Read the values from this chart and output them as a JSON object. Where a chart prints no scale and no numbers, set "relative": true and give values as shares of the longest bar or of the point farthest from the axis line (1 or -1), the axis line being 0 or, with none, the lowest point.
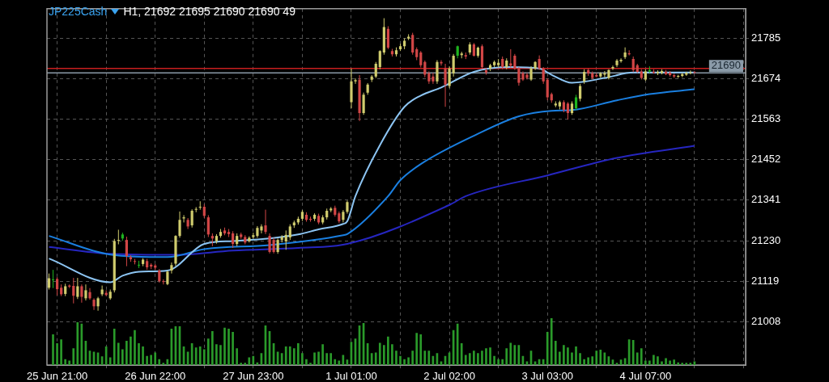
{
  "chart_data": [
    {
      "type": "candlestick",
      "title": "JP225Cash",
      "subtitle": "H1, 21692 21695 21690 21690 49",
      "categories": [
        null,
        null,
        "25 Jun 21:00",
        null,
        null,
        null,
        null,
        null,
        null,
        null,
        null,
        null,
        null,
        null,
        null,
        null,
        null,
        null,
        null,
        null,
        null,
        null,
        null,
        null,
        null,
        null,
        "26 Jun 22:00",
        null,
        null,
        null,
        null,
        null,
        null,
        null,
        null,
        null,
        null,
        null,
        null,
        null,
        null,
        null,
        null,
        null,
        null,
        null,
        null,
        null,
        null,
        null,
        "27 Jun 23:00",
        null,
        null,
        null,
        null,
        null,
        null,
        null,
        null,
        null,
        null,
        null,
        null,
        null,
        null,
        null,
        null,
        null,
        null,
        null,
        null,
        null,
        null,
        null,
        "1 Jul 01:00",
        null,
        null,
        null,
        null,
        null,
        null,
        null,
        null,
        null,
        null,
        null,
        null,
        null,
        null,
        null,
        null,
        null,
        null,
        null,
        null,
        null,
        null,
        null,
        "2 Jul 02:00",
        null,
        null,
        null,
        null,
        null,
        null,
        null,
        null,
        null,
        null,
        null,
        null,
        null,
        null,
        null,
        null,
        null,
        null,
        null,
        null,
        null,
        null,
        null,
        "3 Jul 03:00",
        null,
        null,
        null,
        null,
        null,
        null,
        null,
        null,
        null,
        null,
        null,
        null,
        null,
        null,
        null,
        null,
        null,
        null,
        null,
        null,
        null,
        null,
        null,
        "4 Jul 07:00",
        null,
        null,
        null,
        null,
        null,
        null,
        null,
        null,
        null,
        null,
        null,
        null,
        null,
        null,
        null,
        null,
        null,
        null,
        null,
        null,
        null,
        null,
        null,
        null
      ],
      "ohlc": [
        [
          21101,
          21140,
          21096,
          21127
        ],
        [
          21124,
          21150,
          21100,
          21124
        ],
        [
          21125,
          21130,
          21080,
          21097
        ],
        [
          21101,
          21110,
          21078,
          21083
        ],
        [
          21084,
          21112,
          21078,
          21105
        ],
        [
          21107,
          21110,
          21100,
          21104
        ],
        [
          21106,
          21128,
          21058,
          21079
        ],
        [
          21076,
          21128,
          21070,
          21105
        ],
        [
          21105,
          21110,
          21060,
          21076
        ],
        [
          21072,
          21110,
          21066,
          21094
        ],
        [
          21089,
          21100,
          21068,
          21072
        ],
        [
          21068,
          21072,
          21040,
          21050
        ],
        [
          21050,
          21076,
          21038,
          21072
        ],
        [
          21083,
          21107,
          21078,
          21096
        ],
        [
          21087,
          21094,
          21078,
          21081
        ],
        [
          21072,
          21096,
          21068,
          21090
        ],
        [
          21094,
          21235,
          21088,
          21229
        ],
        [
          21230,
          21260,
          21220,
          21232
        ],
        [
          21236,
          21252,
          21230,
          21247
        ],
        [
          21232,
          21241,
          21160,
          21188
        ],
        [
          21185,
          21190,
          21172,
          21179
        ],
        [
          21174,
          21180,
          21165,
          21172
        ],
        [
          21163,
          21175,
          21155,
          21164
        ],
        [
          21166,
          21182,
          21160,
          21178
        ],
        [
          21174,
          21180,
          21150,
          21157
        ],
        [
          21164,
          21168,
          21152,
          21159
        ],
        [
          21162,
          21166,
          21150,
          21156
        ],
        [
          21148,
          21152,
          21115,
          21119
        ],
        [
          21119,
          21124,
          21110,
          21117
        ],
        [
          21111,
          21148,
          21108,
          21145
        ],
        [
          21148,
          21170,
          21140,
          21163
        ],
        [
          21167,
          21245,
          21160,
          21243
        ],
        [
          21243,
          21310,
          21238,
          21287
        ],
        [
          21291,
          21300,
          21280,
          21294
        ],
        [
          21287,
          21292,
          21262,
          21269
        ],
        [
          21272,
          21316,
          21266,
          21312
        ],
        [
          21315,
          21322,
          21308,
          21317
        ],
        [
          21321,
          21338,
          21315,
          21323
        ],
        [
          21323,
          21330,
          21292,
          21298
        ],
        [
          21294,
          21300,
          21240,
          21247
        ],
        [
          21243,
          21250,
          21215,
          21236
        ],
        [
          21229,
          21248,
          21222,
          21243
        ],
        [
          21243,
          21262,
          21238,
          21254
        ],
        [
          21258,
          21266,
          21245,
          21250
        ],
        [
          21254,
          21262,
          21240,
          21248
        ],
        [
          21250,
          21256,
          21210,
          21221
        ],
        [
          21221,
          21250,
          21215,
          21243
        ],
        [
          21247,
          21252,
          21235,
          21240
        ],
        [
          21240,
          21245,
          21220,
          21225
        ],
        [
          21229,
          21242,
          21225,
          21238
        ],
        [
          21240,
          21252,
          21235,
          21245
        ],
        [
          21243,
          21270,
          21238,
          21265
        ],
        [
          21258,
          21275,
          21250,
          21269
        ],
        [
          21272,
          21315,
          21248,
          21254
        ],
        [
          21243,
          21250,
          21195,
          21199
        ],
        [
          21232,
          21238,
          21195,
          21199
        ],
        [
          21199,
          21236,
          21194,
          21232
        ],
        [
          21232,
          21245,
          21225,
          21240
        ],
        [
          21228,
          21258,
          21205,
          21246
        ],
        [
          21239,
          21275,
          21232,
          21269
        ],
        [
          21272,
          21285,
          21265,
          21280
        ],
        [
          21280,
          21296,
          21274,
          21290
        ],
        [
          21290,
          21314,
          21284,
          21309
        ],
        [
          21301,
          21308,
          21282,
          21287
        ],
        [
          21290,
          21296,
          21282,
          21287
        ],
        [
          21290,
          21305,
          21284,
          21301
        ],
        [
          21298,
          21304,
          21275,
          21280
        ],
        [
          21280,
          21300,
          21275,
          21294
        ],
        [
          21294,
          21318,
          21288,
          21312
        ],
        [
          21313,
          21322,
          21308,
          21318
        ],
        [
          21320,
          21326,
          21296,
          21301
        ],
        [
          21305,
          21310,
          21278,
          21283
        ],
        [
          21287,
          21314,
          21280,
          21309
        ],
        [
          21309,
          21340,
          21304,
          21336
        ],
        [
          21610,
          21702,
          21593,
          21667
        ],
        [
          21667,
          21675,
          21660,
          21670
        ],
        [
          21671,
          21684,
          21558,
          21580
        ],
        [
          21580,
          21636,
          21575,
          21630
        ],
        [
          21636,
          21662,
          21630,
          21658
        ],
        [
          21671,
          21684,
          21665,
          21680
        ],
        [
          21680,
          21720,
          21676,
          21715
        ],
        [
          21706,
          21752,
          21700,
          21750
        ],
        [
          21746,
          21840,
          21740,
          21816
        ],
        [
          21811,
          21818,
          21755,
          21759
        ],
        [
          21750,
          21756,
          21735,
          21741
        ],
        [
          21741,
          21760,
          21735,
          21752
        ],
        [
          21755,
          21770,
          21750,
          21763
        ],
        [
          21763,
          21785,
          21755,
          21778
        ],
        [
          21784,
          21796,
          21780,
          21789
        ],
        [
          21794,
          21800,
          21740,
          21746
        ],
        [
          21755,
          21760,
          21725,
          21733
        ],
        [
          21746,
          21750,
          21705,
          21711
        ],
        [
          21720,
          21724,
          21678,
          21685
        ],
        [
          21689,
          21694,
          21660,
          21667
        ],
        [
          21680,
          21690,
          21660,
          21667
        ],
        [
          21667,
          21725,
          21660,
          21720
        ],
        [
          21720,
          21725,
          21710,
          21716
        ],
        [
          21702,
          21715,
          21597,
          21658
        ],
        [
          21654,
          21708,
          21648,
          21702
        ],
        [
          21689,
          21742,
          21680,
          21737
        ],
        [
          21737,
          21765,
          21730,
          21763
        ],
        [
          21739,
          21748,
          21730,
          21743
        ],
        [
          21739,
          21746,
          21728,
          21735
        ],
        [
          21746,
          21774,
          21740,
          21768
        ],
        [
          21768,
          21772,
          21735,
          21737
        ],
        [
          21737,
          21762,
          21732,
          21759
        ],
        [
          21763,
          21768,
          21700,
          21706
        ],
        [
          21697,
          21702,
          21685,
          21691
        ],
        [
          21702,
          21715,
          21695,
          21711
        ],
        [
          21711,
          21724,
          21706,
          21720
        ],
        [
          21711,
          21728,
          21705,
          21718
        ],
        [
          21728,
          21735,
          21700,
          21706
        ],
        [
          21706,
          21730,
          21700,
          21724
        ],
        [
          21716,
          21755,
          21705,
          21710
        ],
        [
          21737,
          21742,
          21698,
          21702
        ],
        [
          21702,
          21706,
          21655,
          21663
        ],
        [
          21689,
          21694,
          21668,
          21672
        ],
        [
          21685,
          21690,
          21672,
          21676
        ],
        [
          21672,
          21708,
          21668,
          21702
        ],
        [
          21702,
          21722,
          21698,
          21720
        ],
        [
          21728,
          21738,
          21698,
          21702
        ],
        [
          21702,
          21706,
          21660,
          21667
        ],
        [
          21671,
          21676,
          21615,
          21623
        ],
        [
          21632,
          21636,
          21608,
          21615
        ],
        [
          21601,
          21612,
          21596,
          21606
        ],
        [
          21598,
          21614,
          21590,
          21610
        ],
        [
          21610,
          21615,
          21582,
          21588
        ],
        [
          21606,
          21610,
          21562,
          21580
        ],
        [
          21580,
          21612,
          21575,
          21606
        ],
        [
          21593,
          21630,
          21588,
          21623
        ],
        [
          21619,
          21660,
          21612,
          21654
        ],
        [
          21667,
          21700,
          21660,
          21693
        ],
        [
          21698,
          21702,
          21682,
          21689
        ],
        [
          21689,
          21694,
          21672,
          21676
        ],
        [
          21684,
          21690,
          21678,
          21680
        ],
        [
          21680,
          21692,
          21676,
          21689
        ],
        [
          21685,
          21695,
          21678,
          21689
        ],
        [
          21676,
          21700,
          21672,
          21698
        ],
        [
          21702,
          21710,
          21698,
          21706
        ],
        [
          21711,
          21728,
          21706,
          21724
        ],
        [
          21722,
          21730,
          21718,
          21726
        ],
        [
          21733,
          21760,
          21728,
          21746
        ],
        [
          21744,
          21752,
          21738,
          21741
        ],
        [
          21728,
          21735,
          21692,
          21698
        ],
        [
          21711,
          21715,
          21690,
          21693
        ],
        [
          21694,
          21700,
          21672,
          21676
        ],
        [
          21672,
          21700,
          21668,
          21694
        ],
        [
          21694,
          21708,
          21690,
          21698
        ],
        [
          21693,
          21700,
          21688,
          21690
        ],
        [
          21689,
          21697,
          21684,
          21693
        ],
        [
          21690,
          21700,
          21686,
          21695
        ],
        [
          21693,
          21698,
          21684,
          21687
        ],
        [
          21690,
          21695,
          21680,
          21684
        ],
        [
          21684,
          21688,
          21676,
          21680
        ],
        [
          21680,
          21685,
          21676,
          21682
        ],
        [
          21682,
          21690,
          21678,
          21687
        ],
        [
          21685,
          21693,
          21682,
          21690
        ],
        [
          21690,
          21697,
          21686,
          21692
        ],
        [
          21692,
          21695,
          21690,
          21690
        ],
        null,
        null,
        null,
        null,
        null,
        null,
        null,
        null,
        null,
        null,
        null,
        null
      ],
      "colors": [
        "#d0cc6e",
        "#1fb51f",
        "#d24646",
        "#d24646",
        "#d0cc6e",
        "#d24646",
        "#d24646",
        "#d0cc6e",
        "#d24646",
        "#d0cc6e",
        "#d24646",
        "#d24646",
        "#d0cc6e",
        "#d0cc6e",
        "#d24646",
        "#d0cc6e",
        "#d0cc6e",
        "#d0cc6e",
        "#1fb51f",
        "#d24646",
        "#d24646",
        "#d24646",
        "#1fb51f",
        "#d0cc6e",
        "#d24646",
        "#d24646",
        "#d24646",
        "#d24646",
        "#d24646",
        "#d0cc6e",
        "#d0cc6e",
        "#d0cc6e",
        "#d0cc6e",
        "#d0cc6e",
        "#d24646",
        "#d0cc6e",
        "#d0cc6e",
        "#d0cc6e",
        "#d24646",
        "#d24646",
        "#d24646",
        "#d0cc6e",
        "#d0cc6e",
        "#d24646",
        "#d24646",
        "#d24646",
        "#d0cc6e",
        "#d24646",
        "#d24646",
        "#d0cc6e",
        "#d0cc6e",
        "#d0cc6e",
        "#d0cc6e",
        "#d24646",
        "#d24646",
        "#d24646",
        "#d0cc6e",
        "#d0cc6e",
        "#d0cc6e",
        "#d0cc6e",
        "#d0cc6e",
        "#d0cc6e",
        "#d0cc6e",
        "#d24646",
        "#d24646",
        "#d0cc6e",
        "#d24646",
        "#d0cc6e",
        "#d0cc6e",
        "#d0cc6e",
        "#d24646",
        "#d24646",
        "#d0cc6e",
        "#d0cc6e",
        "#d0cc6e",
        "#d0cc6e",
        "#d24646",
        "#d0cc6e",
        "#d0cc6e",
        "#d0cc6e",
        "#d0cc6e",
        "#d0cc6e",
        "#d0cc6e",
        "#d24646",
        "#d24646",
        "#d0cc6e",
        "#d0cc6e",
        "#d0cc6e",
        "#d0cc6e",
        "#d24646",
        "#d24646",
        "#d24646",
        "#d24646",
        "#d24646",
        "#d24646",
        "#d0cc6e",
        "#d24646",
        "#d24646",
        "#d0cc6e",
        "#d0cc6e",
        "#1fb51f",
        "#d0cc6e",
        "#d24646",
        "#d0cc6e",
        "#d24646",
        "#d0cc6e",
        "#d24646",
        "#d24646",
        "#d0cc6e",
        "#d0cc6e",
        "#d0cc6e",
        "#d24646",
        "#d0cc6e",
        "#d24646",
        "#d24646",
        "#d24646",
        "#d24646",
        "#d24646",
        "#d0cc6e",
        "#d0cc6e",
        "#d24646",
        "#d24646",
        "#d24646",
        "#d24646",
        "#d0cc6e",
        "#d0cc6e",
        "#d24646",
        "#d24646",
        "#d0cc6e",
        "#1fb51f",
        "#d0cc6e",
        "#d0cc6e",
        "#d24646",
        "#d24646",
        "#d24646",
        "#d0cc6e",
        "#d0cc6e",
        "#d0cc6e",
        "#d0cc6e",
        "#d0cc6e",
        "#d0cc6e",
        "#d0cc6e",
        "#d24646",
        "#d24646",
        "#d24646",
        "#d24646",
        "#d0cc6e",
        "#1fb51f",
        "#d24646",
        "#d0cc6e",
        "#d0cc6e",
        "#d24646",
        "#d24646",
        "#d24646",
        "#d0cc6e",
        "#d0cc6e",
        "#d0cc6e",
        "#d0cc6e",
        "#d24646",
        null,
        null,
        null,
        null,
        null,
        null,
        null,
        null,
        null,
        null,
        null,
        null
      ],
      "series": [
        {
          "type": "line",
          "color": "#8cc4f2",
          "values": [
            21181,
            null,
            null,
            null,
            null,
            null,
            null,
            null,
            null,
            null,
            null,
            null,
            null,
            null,
            null,
            21116,
            null,
            null,
            21134,
            null,
            null,
            null,
            21145,
            null,
            null,
            null,
            null,
            null,
            null,
            21148,
            null,
            null,
            null,
            null,
            null,
            null,
            null,
            null,
            21221,
            null,
            null,
            null,
            null,
            null,
            null,
            21229,
            null,
            null,
            null,
            null,
            null,
            null,
            null,
            null,
            21236,
            null,
            null,
            null,
            null,
            null,
            null,
            21247,
            null,
            null,
            null,
            null,
            21261,
            null,
            null,
            null,
            null,
            null,
            21276,
            21283,
            null,
            21352,
            null,
            null,
            null,
            null,
            null,
            21492,
            null,
            null,
            null,
            null,
            null,
            21597,
            null,
            null,
            null,
            21628,
            null,
            null,
            null,
            null,
            21650,
            null,
            null,
            null,
            null,
            null,
            null,
            null,
            21693,
            null,
            null,
            null,
            null,
            null,
            null,
            null,
            null,
            21706,
            null,
            null,
            null,
            null,
            null,
            null,
            21702,
            null,
            null,
            21685,
            null,
            null,
            null,
            null,
            21663,
            null,
            null,
            null,
            null,
            null,
            null,
            null,
            21676,
            null,
            null,
            null,
            null,
            null,
            null,
            21691,
            null,
            null,
            null,
            null,
            null,
            null,
            null,
            null,
            21691,
            null,
            null,
            null,
            null,
            null,
            21691,
            null,
            null,
            null,
            null,
            null,
            null,
            null,
            null,
            null,
            null,
            null,
            null
          ]
        },
        {
          "type": "line",
          "color": "#1a7fe0",
          "values": [
            21243,
            null,
            null,
            null,
            null,
            null,
            null,
            null,
            null,
            null,
            null,
            null,
            null,
            null,
            null,
            21192,
            null,
            null,
            null,
            null,
            null,
            null,
            null,
            null,
            null,
            null,
            null,
            null,
            null,
            21185,
            null,
            null,
            null,
            null,
            null,
            null,
            null,
            null,
            21207,
            null,
            null,
            null,
            null,
            null,
            null,
            null,
            null,
            null,
            null,
            null,
            null,
            null,
            null,
            null,
            21218,
            null,
            null,
            null,
            null,
            null,
            null,
            null,
            null,
            null,
            null,
            null,
            null,
            null,
            null,
            null,
            null,
            null,
            21245,
            21248,
            null,
            null,
            null,
            null,
            null,
            null,
            null,
            null,
            null,
            21352,
            null,
            null,
            21396,
            null,
            null,
            null,
            null,
            21440,
            null,
            null,
            null,
            null,
            null,
            null,
            null,
            null,
            null,
            null,
            null,
            null,
            null,
            21523,
            null,
            null,
            null,
            null,
            null,
            null,
            null,
            null,
            null,
            21571,
            null,
            null,
            null,
            null,
            null,
            null,
            null,
            21586,
            null,
            null,
            null,
            null,
            21588,
            null,
            null,
            null,
            null,
            null,
            null,
            null,
            null,
            null,
            null,
            21615,
            null,
            null,
            null,
            null,
            null,
            null,
            null,
            21632,
            null,
            null,
            null,
            null,
            null,
            null,
            null,
            null,
            null,
            null,
            21645,
            null,
            null,
            null,
            null,
            null,
            null,
            null,
            null,
            null,
            null,
            null,
            null
          ]
        },
        {
          "type": "line",
          "color": "#2626c0",
          "values": [
            21213,
            null,
            null,
            null,
            null,
            null,
            null,
            null,
            null,
            null,
            null,
            null,
            null,
            null,
            null,
            21194,
            null,
            null,
            null,
            null,
            null,
            null,
            null,
            null,
            null,
            null,
            null,
            null,
            null,
            null,
            null,
            21191,
            null,
            null,
            null,
            null,
            null,
            null,
            null,
            null,
            null,
            null,
            null,
            null,
            null,
            21203,
            null,
            null,
            null,
            null,
            null,
            null,
            null,
            null,
            null,
            null,
            null,
            null,
            null,
            null,
            null,
            21210,
            null,
            null,
            null,
            null,
            null,
            null,
            null,
            null,
            null,
            null,
            null,
            21221,
            null,
            null,
            null,
            null,
            null,
            null,
            null,
            null,
            null,
            null,
            null,
            null,
            null,
            null,
            null,
            null,
            null,
            null,
            null,
            null,
            null,
            null,
            null,
            null,
            21328,
            null,
            null,
            null,
            21352,
            null,
            null,
            null,
            null,
            null,
            null,
            null,
            null,
            null,
            null,
            null,
            null,
            null,
            null,
            null,
            null,
            null,
            null,
            null,
            21409,
            null,
            null,
            null,
            null,
            null,
            null,
            null,
            null,
            null,
            null,
            null,
            null,
            null,
            null,
            null,
            null,
            21457,
            null,
            null,
            null,
            null,
            null,
            null,
            null,
            null,
            null,
            null,
            null,
            null,
            null,
            null,
            null,
            null,
            null,
            null,
            21490,
            null,
            null,
            null,
            null,
            null,
            null,
            null,
            null,
            null,
            null,
            null,
            null
          ]
        }
      ],
      "ylim": [
        20889,
        21866
      ],
      "yticks": [
        21008,
        21119,
        21230,
        21341,
        21452,
        21563,
        21674,
        21785
      ],
      "ref_lines": [
        {
          "axis": "y",
          "value": 21702,
          "color": "#c81e1e"
        },
        {
          "axis": "y",
          "value": 21690,
          "label": "21690",
          "color": "#8a9aa8"
        }
      ],
      "grid": true
    },
    {
      "type": "bar",
      "relative": true,
      "color": "#2a9a2a",
      "categories": [
        null,
        null,
        null,
        null,
        null,
        null,
        null,
        null,
        null,
        null,
        null,
        null,
        null,
        null,
        null,
        null,
        null,
        null,
        null,
        null,
        null,
        null,
        null,
        null,
        null,
        null,
        null,
        null,
        null,
        null,
        null,
        null,
        null,
        null,
        null,
        null,
        null,
        null,
        null,
        null,
        null,
        null,
        null,
        null,
        null,
        null,
        null,
        null,
        null,
        null,
        null,
        null,
        null,
        null,
        null,
        null,
        null,
        null,
        null,
        null,
        null,
        null,
        null,
        null,
        null,
        null,
        null,
        null,
        null,
        null,
        null,
        null,
        null,
        null,
        null,
        null,
        null,
        null,
        null,
        null,
        null,
        null,
        null,
        null,
        null,
        null,
        null,
        null,
        null,
        null,
        null,
        null,
        null,
        null,
        null,
        null,
        null,
        null,
        null,
        null,
        null,
        null,
        null,
        null,
        null,
        null,
        null,
        null,
        null,
        null,
        null,
        null,
        null,
        null,
        null,
        null,
        null,
        null,
        null,
        null,
        null,
        null,
        null,
        null,
        null,
        null,
        null,
        null,
        null,
        null,
        null,
        null,
        null,
        null,
        null,
        null,
        null,
        null,
        null,
        null,
        null,
        null,
        null,
        null,
        null,
        null,
        null,
        null,
        null,
        null,
        null,
        null,
        null,
        null,
        null,
        null,
        null,
        null
      ],
      "values": [
        0.65,
        0.46,
        0.54,
        0.12,
        0.09,
        0.35,
        0.91,
        0.88,
        0.51,
        0.3,
        0.28,
        0.26,
        0.18,
        0.39,
        0.16,
        0.77,
        0.47,
        0.33,
        0.51,
        0.6,
        0.74,
        0.46,
        0.39,
        0.19,
        0.21,
        0.26,
        0.12,
        0.04,
        0.12,
        0.77,
        0.82,
        0.82,
        0.39,
        0.28,
        0.46,
        0.37,
        0.39,
        0.33,
        0.56,
        0.72,
        0.44,
        0.42,
        0.79,
        0.77,
        0.7,
        0.35,
        0.04,
        0.04,
        0.16,
        0.19,
        0.05,
        0.25,
        0.84,
        0.72,
        0.46,
        0.28,
        0.25,
        0.39,
        0.39,
        0.35,
        0.46,
        0.25,
        0.12,
        0.04,
        0.26,
        0.28,
        0.44,
        0.25,
        0.25,
        0.12,
        0.09,
        0.21,
        0.11,
        0.49,
        0.56,
        0.84,
        0.89,
        0.46,
        0.25,
        0.26,
        0.47,
        0.42,
        0.6,
        0.44,
        0.3,
        0.19,
        0.12,
        0.16,
        0.3,
        0.68,
        0.65,
        0.3,
        0.3,
        0.19,
        0.25,
        0.07,
        0.19,
        0.26,
        0.74,
        0.88,
        0.46,
        0.21,
        0.25,
        0.3,
        0.25,
        0.3,
        0.35,
        0.37,
        0.19,
        0.12,
        0.12,
        0.35,
        0.47,
        0.42,
        0.42,
        0.19,
        0.07,
        0.3,
        0.07,
        0.12,
        0.12,
        0.7,
        1,
        0.51,
        0.28,
        0.42,
        0.37,
        0.26,
        0.39,
        0.25,
        0.12,
        0.16,
        0.18,
        0.3,
        0.32,
        0.26,
        0.18,
        0.11,
        0.04,
        0.11,
        0.14,
        0.54,
        0.53,
        0.26,
        0.35,
        0.09,
        0.09,
        0.21,
        0.18,
        0.07,
        0.14,
        0.09,
        0.11,
        0.05,
        0.04,
        0.04,
        0.04,
        0.07
      ]
    }
  ]
}
